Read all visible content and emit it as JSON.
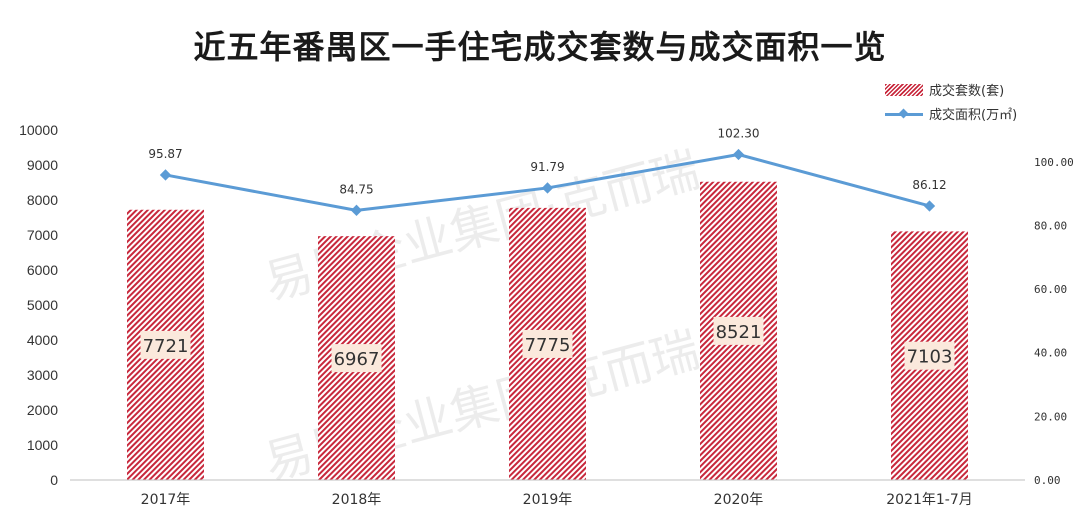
{
  "title": "近五年番禺区一手住宅成交套数与成交面积一览",
  "colors": {
    "bar": "#c8283c",
    "line": "#5b9bd5",
    "axis_text": "#333333",
    "label_bg": "#fbe9dc"
  },
  "legend": {
    "bar_label": "成交套数(套)",
    "line_label": "成交面积(万㎡)"
  },
  "chart_data": {
    "type": "bar+line",
    "categories": [
      "2017年",
      "2018年",
      "2019年",
      "2020年",
      "2021年1-7月"
    ],
    "series": [
      {
        "name": "成交套数(套)",
        "type": "bar",
        "axis": "left",
        "values": [
          7721,
          6967,
          7775,
          8521,
          7103
        ]
      },
      {
        "name": "成交面积(万㎡)",
        "type": "line",
        "axis": "right",
        "values": [
          95.87,
          84.75,
          91.79,
          102.3,
          86.12
        ]
      }
    ],
    "y_left": {
      "range": [
        0,
        10000
      ],
      "ticks": [
        "0",
        "1000",
        "2000",
        "3000",
        "4000",
        "5000",
        "6000",
        "7000",
        "8000",
        "9000",
        "10000"
      ]
    },
    "y_right": {
      "range": [
        0,
        110
      ],
      "ticks": [
        "0.00",
        "20.00",
        "40.00",
        "60.00",
        "80.00",
        "100.00"
      ]
    },
    "bar_value_labels": [
      "7721",
      "6967",
      "7775",
      "8521",
      "7103"
    ],
    "line_value_labels": [
      "95.87",
      "84.75",
      "91.79",
      "102.30",
      "86.12"
    ],
    "legend_position": "top-right",
    "grid": false
  },
  "watermark": "易居企业集团·克而瑞"
}
